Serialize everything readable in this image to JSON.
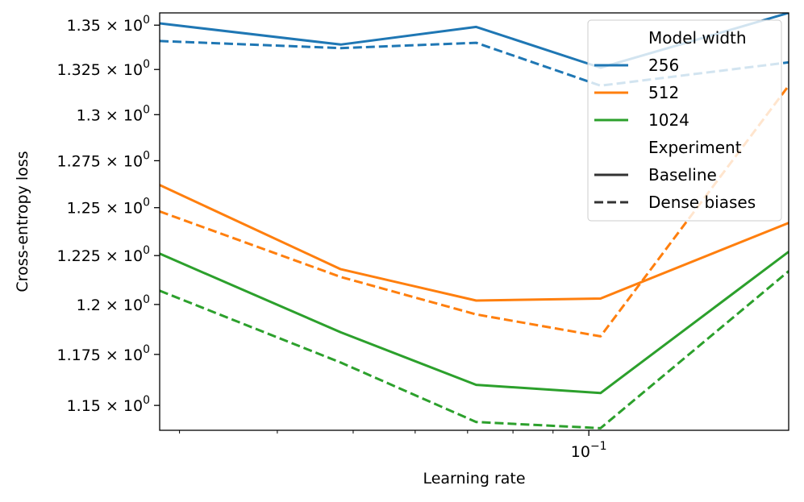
{
  "chart_data": {
    "type": "line",
    "title": "",
    "xlabel": "Learning rate",
    "ylabel": "Cross-entropy loss",
    "xscale": "log",
    "yscale": "log",
    "xlim": [
      0.0283,
      0.18
    ],
    "ylim": [
      1.138,
      1.357
    ],
    "x": [
      0.0283,
      0.0482,
      0.0718,
      0.1035,
      0.18
    ],
    "x_tick_labels": [
      {
        "value": 0.1,
        "base": "10",
        "exp": "−1"
      }
    ],
    "y_tick_labels": [
      {
        "value": 1.15,
        "mantissa": "1.15",
        "base": "10",
        "exp": "0"
      },
      {
        "value": 1.175,
        "mantissa": "1.175",
        "base": "10",
        "exp": "0"
      },
      {
        "value": 1.2,
        "mantissa": "1.2",
        "base": "10",
        "exp": "0"
      },
      {
        "value": 1.225,
        "mantissa": "1.225",
        "base": "10",
        "exp": "0"
      },
      {
        "value": 1.25,
        "mantissa": "1.25",
        "base": "10",
        "exp": "0"
      },
      {
        "value": 1.275,
        "mantissa": "1.275",
        "base": "10",
        "exp": "0"
      },
      {
        "value": 1.3,
        "mantissa": "1.3",
        "base": "10",
        "exp": "0"
      },
      {
        "value": 1.325,
        "mantissa": "1.325",
        "base": "10",
        "exp": "0"
      },
      {
        "value": 1.35,
        "mantissa": "1.35",
        "base": "10",
        "exp": "0"
      }
    ],
    "series": [
      {
        "name": "256 Baseline",
        "width": "256",
        "experiment": "Baseline",
        "color": "#1f77b4",
        "dash": "solid",
        "values": [
          1.351,
          1.339,
          1.349,
          1.326,
          1.357
        ]
      },
      {
        "name": "256 Dense biases",
        "width": "256",
        "experiment": "Dense biases",
        "color": "#1f77b4",
        "dash": "dashed",
        "values": [
          1.341,
          1.337,
          1.34,
          1.316,
          1.329
        ]
      },
      {
        "name": "512 Baseline",
        "width": "512",
        "experiment": "Baseline",
        "color": "#ff7f0e",
        "dash": "solid",
        "values": [
          1.262,
          1.218,
          1.202,
          1.203,
          1.242
        ]
      },
      {
        "name": "512 Dense biases",
        "width": "512",
        "experiment": "Dense biases",
        "color": "#ff7f0e",
        "dash": "dashed",
        "values": [
          1.248,
          1.214,
          1.195,
          1.184,
          1.316
        ]
      },
      {
        "name": "1024 Baseline",
        "width": "1024",
        "experiment": "Baseline",
        "color": "#2ca02c",
        "dash": "solid",
        "values": [
          1.226,
          1.186,
          1.16,
          1.156,
          1.227
        ]
      },
      {
        "name": "1024 Dense biases",
        "width": "1024",
        "experiment": "Dense biases",
        "color": "#2ca02c",
        "dash": "dashed",
        "values": [
          1.207,
          1.171,
          1.142,
          1.139,
          1.217
        ]
      }
    ],
    "legend": {
      "placement": "top-right",
      "entries": [
        {
          "label": "Model width",
          "kind": "header"
        },
        {
          "label": "256",
          "kind": "line",
          "color": "#1f77b4",
          "dash": "solid"
        },
        {
          "label": "512",
          "kind": "line",
          "color": "#ff7f0e",
          "dash": "solid"
        },
        {
          "label": "1024",
          "kind": "line",
          "color": "#2ca02c",
          "dash": "solid"
        },
        {
          "label": "Experiment",
          "kind": "header"
        },
        {
          "label": "Baseline",
          "kind": "line",
          "color": "#333333",
          "dash": "solid"
        },
        {
          "label": "Dense biases",
          "kind": "line",
          "color": "#333333",
          "dash": "dashed"
        }
      ]
    },
    "grid": false
  }
}
